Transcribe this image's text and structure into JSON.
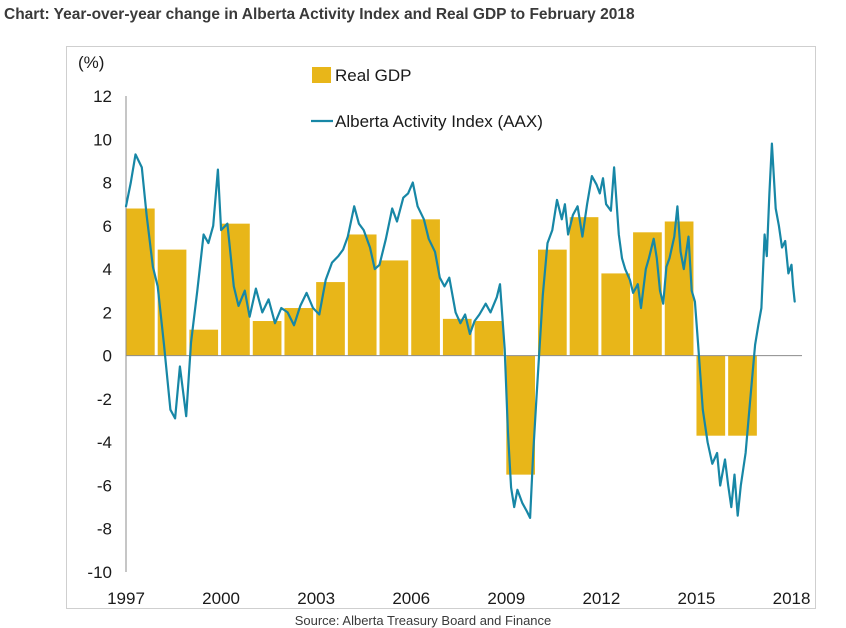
{
  "title": "Chart: Year-over-year change in Alberta Activity Index and Real GDP to February 2018",
  "source": "Source: Alberta Treasury Board and Finance",
  "colors": {
    "bar": "#E8B619",
    "line": "#1787A6",
    "axis": "#8c8c8c",
    "text": "#1a1a1a"
  },
  "chart_data": {
    "type": "bar+line",
    "title": "Chart: Year-over-year change in Alberta Activity Index and Real GDP to February 2018",
    "ylabel": "(%)",
    "ylim": [
      -10,
      12
    ],
    "yticks": [
      12,
      10,
      8,
      6,
      4,
      2,
      0,
      -2,
      -4,
      -6,
      -8,
      -10
    ],
    "xlim": [
      1997,
      2018.33
    ],
    "xticks": [
      1997,
      2000,
      2003,
      2006,
      2009,
      2012,
      2015,
      2018
    ],
    "grid": false,
    "legend": {
      "placement": "top-center",
      "entries": [
        "Real GDP",
        "Alberta Activity Index (AAX)"
      ]
    },
    "series": [
      {
        "name": "Real GDP",
        "kind": "bar",
        "x": [
          1997,
          1998,
          1999,
          2000,
          2001,
          2002,
          2003,
          2004,
          2005,
          2006,
          2007,
          2008,
          2009,
          2010,
          2011,
          2012,
          2013,
          2014,
          2015,
          2016
        ],
        "values": [
          6.8,
          4.9,
          1.2,
          6.1,
          1.6,
          2.2,
          3.4,
          5.6,
          4.4,
          6.3,
          1.7,
          1.6,
          -5.5,
          4.9,
          6.4,
          3.8,
          5.7,
          6.2,
          -3.7,
          -3.7
        ]
      },
      {
        "name": "Alberta Activity Index (AAX)",
        "kind": "line",
        "points": [
          [
            1997.0,
            6.9
          ],
          [
            1997.15,
            8.0
          ],
          [
            1997.3,
            9.3
          ],
          [
            1997.5,
            8.7
          ],
          [
            1997.65,
            6.5
          ],
          [
            1997.85,
            4.1
          ],
          [
            1998.0,
            3.2
          ],
          [
            1998.2,
            0.5
          ],
          [
            1998.4,
            -2.5
          ],
          [
            1998.55,
            -2.9
          ],
          [
            1998.7,
            -0.5
          ],
          [
            1998.9,
            -2.8
          ],
          [
            1999.05,
            0.6
          ],
          [
            1999.25,
            3.0
          ],
          [
            1999.45,
            5.6
          ],
          [
            1999.6,
            5.2
          ],
          [
            1999.75,
            6.0
          ],
          [
            1999.9,
            8.6
          ],
          [
            2000.0,
            5.8
          ],
          [
            2000.2,
            6.1
          ],
          [
            2000.4,
            3.2
          ],
          [
            2000.55,
            2.3
          ],
          [
            2000.75,
            3.0
          ],
          [
            2000.9,
            1.8
          ],
          [
            2001.1,
            3.1
          ],
          [
            2001.3,
            2.0
          ],
          [
            2001.5,
            2.6
          ],
          [
            2001.7,
            1.5
          ],
          [
            2001.9,
            2.2
          ],
          [
            2002.1,
            2.0
          ],
          [
            2002.3,
            1.4
          ],
          [
            2002.5,
            2.3
          ],
          [
            2002.7,
            2.9
          ],
          [
            2002.9,
            2.2
          ],
          [
            2003.1,
            1.9
          ],
          [
            2003.3,
            3.5
          ],
          [
            2003.5,
            4.3
          ],
          [
            2003.7,
            4.6
          ],
          [
            2003.85,
            4.9
          ],
          [
            2004.0,
            5.5
          ],
          [
            2004.2,
            6.9
          ],
          [
            2004.35,
            6.1
          ],
          [
            2004.5,
            5.8
          ],
          [
            2004.7,
            5.0
          ],
          [
            2004.85,
            4.0
          ],
          [
            2005.0,
            4.2
          ],
          [
            2005.2,
            5.4
          ],
          [
            2005.4,
            6.8
          ],
          [
            2005.55,
            6.2
          ],
          [
            2005.75,
            7.3
          ],
          [
            2005.9,
            7.5
          ],
          [
            2006.05,
            8.0
          ],
          [
            2006.2,
            6.9
          ],
          [
            2006.4,
            6.3
          ],
          [
            2006.55,
            5.4
          ],
          [
            2006.75,
            4.8
          ],
          [
            2006.9,
            3.6
          ],
          [
            2007.05,
            3.2
          ],
          [
            2007.2,
            3.6
          ],
          [
            2007.4,
            2.0
          ],
          [
            2007.55,
            1.5
          ],
          [
            2007.7,
            1.9
          ],
          [
            2007.85,
            1.0
          ],
          [
            2008.0,
            1.6
          ],
          [
            2008.15,
            1.9
          ],
          [
            2008.35,
            2.4
          ],
          [
            2008.5,
            2.0
          ],
          [
            2008.7,
            2.7
          ],
          [
            2008.8,
            3.3
          ],
          [
            2008.95,
            0.3
          ],
          [
            2009.05,
            -3.5
          ],
          [
            2009.15,
            -6.1
          ],
          [
            2009.25,
            -7.0
          ],
          [
            2009.35,
            -6.2
          ],
          [
            2009.5,
            -6.8
          ],
          [
            2009.65,
            -7.2
          ],
          [
            2009.75,
            -7.5
          ],
          [
            2009.85,
            -4.5
          ],
          [
            2009.95,
            -2.0
          ],
          [
            2010.05,
            0.4
          ],
          [
            2010.15,
            2.8
          ],
          [
            2010.3,
            5.2
          ],
          [
            2010.45,
            5.8
          ],
          [
            2010.6,
            7.2
          ],
          [
            2010.75,
            6.3
          ],
          [
            2010.85,
            7.0
          ],
          [
            2010.95,
            5.6
          ],
          [
            2011.1,
            6.5
          ],
          [
            2011.25,
            6.9
          ],
          [
            2011.4,
            5.5
          ],
          [
            2011.55,
            7.0
          ],
          [
            2011.7,
            8.3
          ],
          [
            2011.85,
            7.9
          ],
          [
            2011.95,
            7.5
          ],
          [
            2012.05,
            8.2
          ],
          [
            2012.15,
            7.0
          ],
          [
            2012.3,
            6.7
          ],
          [
            2012.4,
            8.7
          ],
          [
            2012.55,
            5.6
          ],
          [
            2012.65,
            4.5
          ],
          [
            2012.75,
            4.0
          ],
          [
            2012.9,
            3.5
          ],
          [
            2013.0,
            2.9
          ],
          [
            2013.15,
            3.3
          ],
          [
            2013.25,
            2.2
          ],
          [
            2013.4,
            4.0
          ],
          [
            2013.5,
            4.5
          ],
          [
            2013.65,
            5.4
          ],
          [
            2013.75,
            4.5
          ],
          [
            2013.85,
            3.0
          ],
          [
            2013.95,
            2.4
          ],
          [
            2014.05,
            4.1
          ],
          [
            2014.15,
            4.5
          ],
          [
            2014.3,
            5.5
          ],
          [
            2014.4,
            6.9
          ],
          [
            2014.5,
            4.8
          ],
          [
            2014.6,
            4.0
          ],
          [
            2014.75,
            5.5
          ],
          [
            2014.85,
            3.0
          ],
          [
            2014.95,
            2.5
          ],
          [
            2015.05,
            0.6
          ],
          [
            2015.2,
            -2.5
          ],
          [
            2015.35,
            -4.0
          ],
          [
            2015.5,
            -5.0
          ],
          [
            2015.65,
            -4.5
          ],
          [
            2015.75,
            -6.0
          ],
          [
            2015.9,
            -4.8
          ],
          [
            2016.0,
            -6.0
          ],
          [
            2016.1,
            -7.0
          ],
          [
            2016.2,
            -5.5
          ],
          [
            2016.3,
            -7.4
          ],
          [
            2016.4,
            -6.0
          ],
          [
            2016.55,
            -4.5
          ],
          [
            2016.7,
            -2.0
          ],
          [
            2016.85,
            0.5
          ],
          [
            2016.95,
            1.4
          ],
          [
            2017.05,
            2.2
          ],
          [
            2017.15,
            5.6
          ],
          [
            2017.22,
            4.6
          ],
          [
            2017.3,
            7.5
          ],
          [
            2017.38,
            9.8
          ],
          [
            2017.5,
            6.8
          ],
          [
            2017.6,
            6.0
          ],
          [
            2017.7,
            5.0
          ],
          [
            2017.8,
            5.3
          ],
          [
            2017.9,
            3.8
          ],
          [
            2018.0,
            4.2
          ],
          [
            2018.05,
            3.2
          ],
          [
            2018.1,
            2.5
          ]
        ]
      }
    ]
  }
}
